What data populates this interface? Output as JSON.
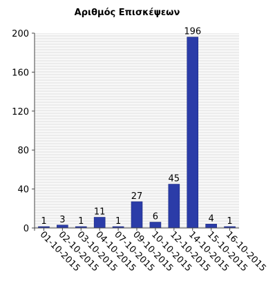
{
  "chart_data": {
    "type": "bar",
    "title": "Αριθμός Επισκέψεων",
    "categories": [
      "01-10-2015",
      "02-10-2015",
      "03-10-2015",
      "04-10-2015",
      "07-10-2015",
      "09-10-2015",
      "10-10-2015",
      "12-10-2015",
      "14-10-2015",
      "15-10-2015",
      "16-10-2015"
    ],
    "values": [
      1,
      3,
      1,
      11,
      1,
      27,
      6,
      45,
      196,
      4,
      1
    ],
    "ylim": [
      0,
      200
    ],
    "yticks": [
      0,
      40,
      80,
      120,
      160,
      200
    ],
    "grid": true,
    "bar_color": "#2b3ca8",
    "plot_background": "#ececec",
    "grid_color": "#ffffff"
  }
}
